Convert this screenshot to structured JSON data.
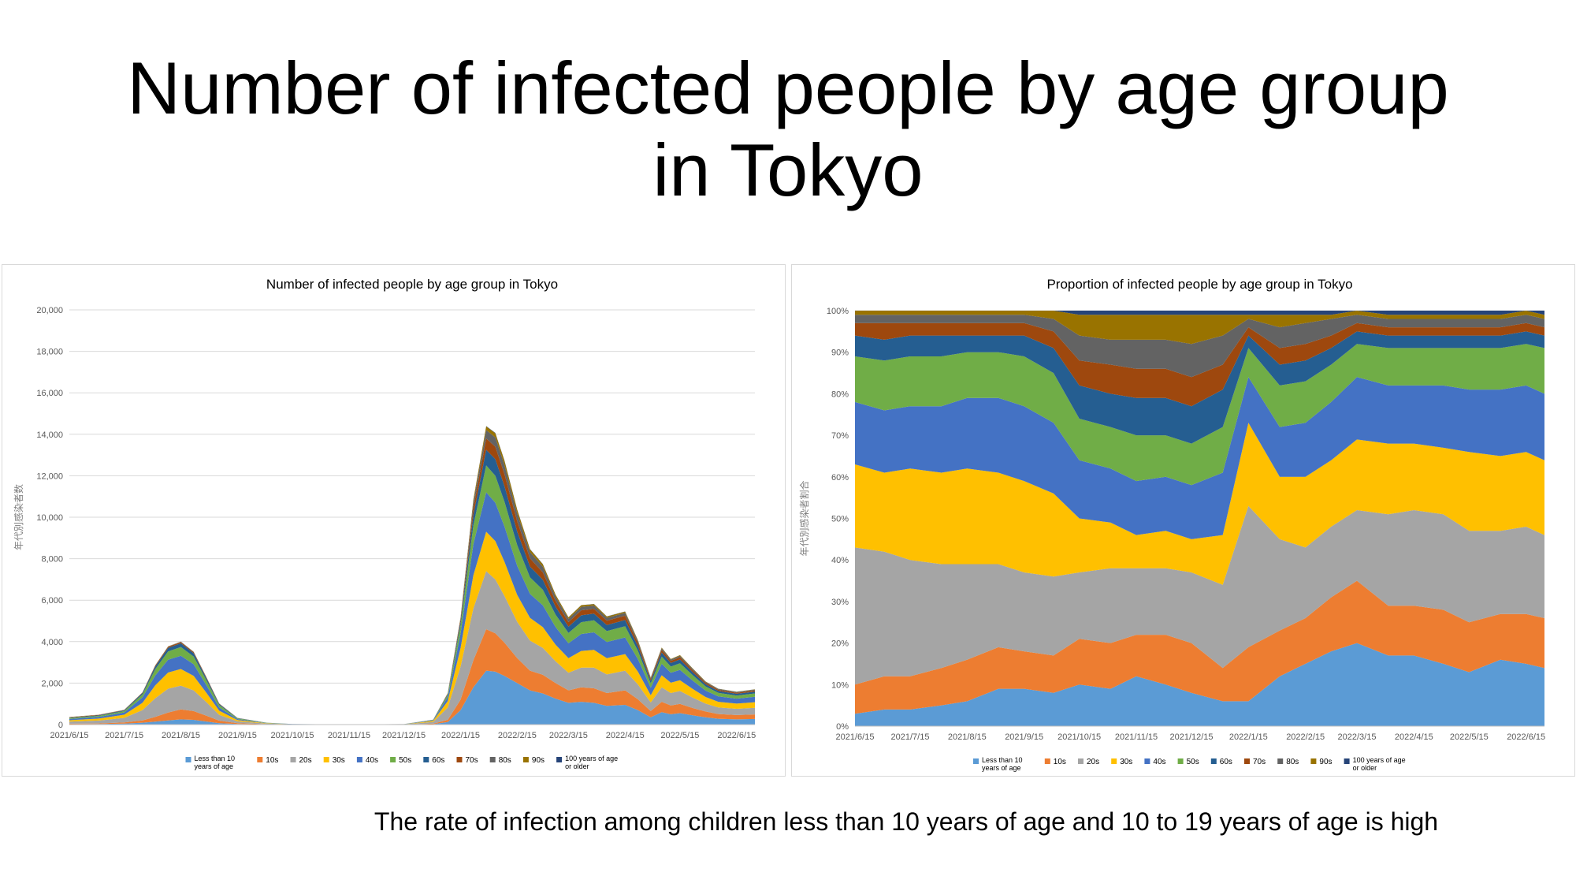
{
  "slide": {
    "title_line1": "Number of infected people by age group",
    "title_line2": "in Tokyo",
    "caption": "The rate of infection among children less than 10 years of age and 10 to 19 years of age is high"
  },
  "legend": [
    {
      "label": "Less than 10",
      "label2": "years of age",
      "color": "#5b9bd5"
    },
    {
      "label": "10s",
      "label2": "",
      "color": "#ed7d31"
    },
    {
      "label": "20s",
      "label2": "",
      "color": "#a5a5a5"
    },
    {
      "label": "30s",
      "label2": "",
      "color": "#ffc000"
    },
    {
      "label": "40s",
      "label2": "",
      "color": "#4472c4"
    },
    {
      "label": "50s",
      "label2": "",
      "color": "#70ad47"
    },
    {
      "label": "60s",
      "label2": "",
      "color": "#255e91"
    },
    {
      "label": "70s",
      "label2": "",
      "color": "#9e480e"
    },
    {
      "label": "80s",
      "label2": "",
      "color": "#636363"
    },
    {
      "label": "90s",
      "label2": "",
      "color": "#997300"
    },
    {
      "label": "100 years of age",
      "label2": "or older",
      "color": "#264478"
    }
  ],
  "chart_data": [
    {
      "type": "area",
      "stacked": true,
      "title": "Number of infected people by age group in Tokyo",
      "ylabel": "年代別感染者数",
      "xlabel": "",
      "ylim": [
        0,
        20000
      ],
      "y_ticks": [
        "0",
        "2,000",
        "4,000",
        "6,000",
        "8,000",
        "10,000",
        "12,000",
        "14,000",
        "16,000",
        "18,000",
        "20,000"
      ],
      "x_ticks": [
        "2021/6/15",
        "2021/7/15",
        "2021/8/15",
        "2021/9/15",
        "2021/10/15",
        "2021/11/15",
        "2021/12/15",
        "2022/1/15",
        "2022/2/15",
        "2022/3/15",
        "2022/4/15",
        "2022/5/15",
        "2022/6/15"
      ],
      "grid": true,
      "legend_position": "bottom",
      "x": [
        "2021/6/15",
        "2021/7/1",
        "2021/7/15",
        "2021/7/25",
        "2021/8/1",
        "2021/8/8",
        "2021/8/15",
        "2021/8/22",
        "2021/8/29",
        "2021/9/5",
        "2021/9/15",
        "2021/10/1",
        "2021/10/15",
        "2021/11/15",
        "2021/12/15",
        "2021/12/31",
        "2022/1/8",
        "2022/1/15",
        "2022/1/22",
        "2022/1/29",
        "2022/2/3",
        "2022/2/8",
        "2022/2/15",
        "2022/2/22",
        "2022/3/1",
        "2022/3/8",
        "2022/3/15",
        "2022/3/22",
        "2022/3/29",
        "2022/4/5",
        "2022/4/15",
        "2022/4/22",
        "2022/4/29",
        "2022/5/5",
        "2022/5/10",
        "2022/5/15",
        "2022/5/22",
        "2022/5/29",
        "2022/6/5",
        "2022/6/15",
        "2022/6/25"
      ],
      "series": [
        {
          "name": "Less than 10 years of age",
          "values": [
            18,
            25,
            50,
            90,
            140,
            200,
            250,
            230,
            150,
            70,
            25,
            8,
            2,
            1,
            2,
            20,
            120,
            700,
            1800,
            2600,
            2550,
            2350,
            2000,
            1650,
            1500,
            1250,
            1050,
            1100,
            1050,
            900,
            950,
            700,
            350,
            600,
            500,
            550,
            450,
            350,
            280,
            250,
            270
          ]
        },
        {
          "name": "10s",
          "values": [
            22,
            30,
            55,
            110,
            230,
            380,
            480,
            420,
            280,
            120,
            40,
            12,
            3,
            1,
            2,
            20,
            110,
            500,
            1300,
            2000,
            1850,
            1600,
            1200,
            950,
            900,
            750,
            600,
            700,
            700,
            620,
            700,
            520,
            300,
            500,
            420,
            450,
            350,
            280,
            230,
            210,
            220
          ]
        },
        {
          "name": "20s",
          "values": [
            100,
            140,
            220,
            500,
            900,
            1150,
            1150,
            1000,
            650,
            280,
            90,
            25,
            7,
            3,
            5,
            90,
            600,
            1600,
            2500,
            2800,
            2600,
            2250,
            1750,
            1450,
            1300,
            1050,
            850,
            950,
            1000,
            900,
            950,
            720,
            420,
            700,
            600,
            620,
            500,
            380,
            320,
            300,
            320
          ]
        },
        {
          "name": "30s",
          "values": [
            70,
            95,
            150,
            350,
            620,
            780,
            800,
            700,
            450,
            200,
            60,
            16,
            5,
            2,
            4,
            50,
            300,
            900,
            1600,
            1900,
            1850,
            1650,
            1300,
            1100,
            1000,
            800,
            700,
            800,
            850,
            780,
            800,
            620,
            350,
            580,
            500,
            520,
            420,
            320,
            270,
            250,
            270
          ]
        },
        {
          "name": "40s",
          "values": [
            60,
            80,
            110,
            260,
            480,
            620,
            640,
            560,
            360,
            160,
            50,
            13,
            4,
            2,
            3,
            30,
            200,
            700,
            1500,
            1900,
            1850,
            1700,
            1400,
            1150,
            1050,
            850,
            720,
            820,
            850,
            780,
            800,
            600,
            350,
            550,
            480,
            500,
            400,
            310,
            260,
            240,
            260
          ]
        },
        {
          "name": "50s",
          "values": [
            40,
            50,
            65,
            150,
            300,
            400,
            420,
            370,
            240,
            110,
            35,
            9,
            3,
            1,
            2,
            15,
            100,
            400,
            900,
            1300,
            1300,
            1200,
            1000,
            800,
            750,
            600,
            500,
            570,
            580,
            530,
            540,
            400,
            220,
            350,
            300,
            320,
            260,
            200,
            170,
            150,
            160
          ]
        },
        {
          "name": "60s",
          "values": [
            25,
            30,
            35,
            65,
            130,
            170,
            180,
            160,
            100,
            50,
            15,
            4,
            1,
            1,
            1,
            7,
            45,
            180,
            500,
            750,
            800,
            750,
            650,
            520,
            480,
            380,
            300,
            330,
            320,
            290,
            300,
            220,
            120,
            200,
            170,
            180,
            150,
            110,
            90,
            85,
            90
          ]
        },
        {
          "name": "70s",
          "values": [
            15,
            15,
            15,
            20,
            40,
            50,
            55,
            50,
            35,
            18,
            6,
            2,
            1,
            0,
            1,
            4,
            25,
            100,
            350,
            550,
            600,
            580,
            500,
            400,
            360,
            280,
            220,
            240,
            230,
            210,
            210,
            150,
            80,
            120,
            100,
            110,
            90,
            70,
            55,
            50,
            55
          ]
        },
        {
          "name": "80s",
          "values": [
            10,
            8,
            8,
            8,
            14,
            16,
            18,
            18,
            14,
            8,
            3,
            1,
            0,
            0,
            1,
            3,
            15,
            70,
            270,
            400,
            450,
            440,
            380,
            300,
            270,
            210,
            160,
            170,
            160,
            140,
            140,
            100,
            55,
            80,
            65,
            70,
            60,
            45,
            38,
            35,
            38
          ]
        },
        {
          "name": "90s",
          "values": [
            4,
            3,
            3,
            3,
            4,
            5,
            5,
            5,
            4,
            3,
            1,
            0,
            0,
            0,
            0,
            1,
            6,
            30,
            120,
            180,
            200,
            200,
            170,
            130,
            120,
            90,
            70,
            75,
            70,
            60,
            60,
            42,
            22,
            32,
            26,
            28,
            24,
            18,
            15,
            13,
            14
          ]
        },
        {
          "name": "100 years of age or older",
          "values": [
            1,
            1,
            1,
            1,
            1,
            1,
            1,
            1,
            1,
            0,
            0,
            0,
            0,
            0,
            0,
            0,
            1,
            3,
            10,
            15,
            18,
            18,
            15,
            12,
            11,
            8,
            6,
            7,
            6,
            5,
            5,
            4,
            2,
            3,
            2,
            2,
            2,
            2,
            1,
            1,
            1
          ]
        }
      ]
    },
    {
      "type": "area",
      "stacked": true,
      "normalized": true,
      "title": "Proportion of infected people by age group in Tokyo",
      "ylabel": "年代別感染者割合",
      "xlabel": "",
      "ylim": [
        0,
        100
      ],
      "y_ticks": [
        "0%",
        "10%",
        "20%",
        "30%",
        "40%",
        "50%",
        "60%",
        "70%",
        "80%",
        "90%",
        "100%"
      ],
      "x_ticks": [
        "2021/6/15",
        "2021/7/15",
        "2021/8/15",
        "2021/9/15",
        "2021/10/15",
        "2021/11/15",
        "2021/12/15",
        "2022/1/15",
        "2022/2/15",
        "2022/3/15",
        "2022/4/15",
        "2022/5/15",
        "2022/6/15"
      ],
      "grid": true,
      "legend_position": "bottom",
      "x": [
        "2021/6/15",
        "2021/7/1",
        "2021/7/15",
        "2021/8/1",
        "2021/8/15",
        "2021/9/1",
        "2021/9/15",
        "2021/10/1",
        "2021/10/15",
        "2021/11/1",
        "2021/11/15",
        "2021/12/1",
        "2021/12/15",
        "2022/1/1",
        "2022/1/15",
        "2022/2/1",
        "2022/2/15",
        "2022/3/1",
        "2022/3/15",
        "2022/4/1",
        "2022/4/15",
        "2022/5/1",
        "2022/5/15",
        "2022/6/1",
        "2022/6/15",
        "2022/6/25"
      ],
      "series": [
        {
          "name": "Less than 10 years of age",
          "values": [
            3,
            4,
            4,
            5,
            6,
            9,
            9,
            8,
            10,
            9,
            12,
            10,
            8,
            6,
            6,
            12,
            15,
            18,
            20,
            17,
            17,
            15,
            13,
            16,
            15,
            14
          ]
        },
        {
          "name": "10s",
          "values": [
            7,
            8,
            8,
            9,
            10,
            10,
            9,
            9,
            11,
            11,
            10,
            12,
            12,
            8,
            13,
            11,
            11,
            13,
            15,
            12,
            12,
            13,
            12,
            11,
            12,
            12
          ]
        },
        {
          "name": "20s",
          "values": [
            33,
            30,
            28,
            25,
            23,
            20,
            19,
            19,
            16,
            18,
            16,
            16,
            17,
            20,
            34,
            22,
            17,
            17,
            17,
            22,
            23,
            23,
            22,
            20,
            21,
            20
          ]
        },
        {
          "name": "30s",
          "values": [
            20,
            19,
            22,
            22,
            23,
            22,
            22,
            20,
            13,
            11,
            8,
            9,
            8,
            12,
            20,
            15,
            17,
            16,
            17,
            17,
            16,
            16,
            19,
            18,
            18,
            18
          ]
        },
        {
          "name": "40s",
          "values": [
            15,
            15,
            15,
            16,
            17,
            18,
            18,
            17,
            14,
            13,
            13,
            13,
            13,
            15,
            11,
            12,
            13,
            14,
            15,
            14,
            14,
            15,
            15,
            16,
            16,
            16
          ]
        },
        {
          "name": "50s",
          "values": [
            11,
            12,
            12,
            12,
            11,
            11,
            12,
            12,
            10,
            10,
            11,
            10,
            10,
            11,
            7,
            10,
            10,
            9,
            8,
            9,
            9,
            9,
            10,
            10,
            10,
            11
          ]
        },
        {
          "name": "60s",
          "values": [
            5,
            5,
            5,
            5,
            4,
            4,
            5,
            6,
            8,
            8,
            9,
            9,
            9,
            9,
            3,
            5,
            5,
            4,
            3,
            3,
            3,
            3,
            3,
            3,
            3,
            3
          ]
        },
        {
          "name": "70s",
          "values": [
            3,
            4,
            3,
            3,
            3,
            3,
            3,
            4,
            6,
            7,
            7,
            7,
            7,
            6,
            2,
            4,
            4,
            3,
            2,
            2,
            2,
            2,
            2,
            2,
            2,
            2
          ]
        },
        {
          "name": "80s",
          "values": [
            2,
            2,
            2,
            2,
            2,
            2,
            2,
            3,
            6,
            6,
            7,
            7,
            8,
            7,
            2,
            5,
            5,
            4,
            2,
            2,
            2,
            2,
            2,
            2,
            2,
            2
          ]
        },
        {
          "name": "90s",
          "values": [
            1,
            1,
            1,
            1,
            1,
            1,
            1,
            2,
            5,
            6,
            6,
            6,
            7,
            5,
            1,
            3,
            2,
            1,
            1,
            1,
            1,
            1,
            1,
            1,
            1,
            1
          ]
        },
        {
          "name": "100 years of age or older",
          "values": [
            0,
            0,
            0,
            0,
            0,
            0,
            0,
            0,
            1,
            1,
            1,
            1,
            1,
            1,
            1,
            1,
            1,
            1,
            0,
            1,
            1,
            1,
            1,
            1,
            0,
            1
          ]
        }
      ]
    }
  ]
}
